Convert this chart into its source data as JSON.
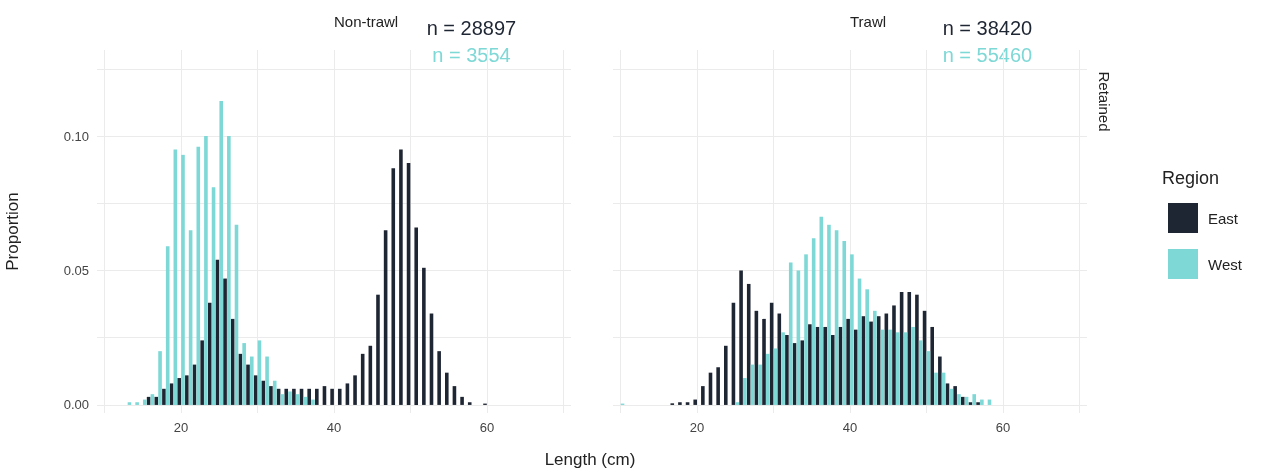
{
  "chart_data": [
    {
      "type": "bar",
      "title": "Non-trawl",
      "ylabel": "Proportion",
      "xlabel": "Length (cm)",
      "xlim": [
        9,
        71
      ],
      "xticks": [
        {
          "value": 10,
          "label": null
        },
        20,
        {
          "value": 30,
          "label": null
        },
        40,
        {
          "value": 50,
          "label": null
        },
        60,
        {
          "value": 70,
          "label": null
        }
      ],
      "ylim": [
        -0.003,
        0.132
      ],
      "yticks": [
        {
          "value": 0,
          "label": "0.00"
        },
        {
          "value": 0.025,
          "label": null
        },
        {
          "value": 0.05,
          "label": "0.05"
        },
        {
          "value": 0.075,
          "label": null
        },
        {
          "value": 0.1,
          "label": "0.10"
        },
        {
          "value": 0.125,
          "label": null
        }
      ],
      "grid": true,
      "legend": false,
      "annotations": [
        "n = 28897",
        "n = 3554"
      ],
      "series": [
        {
          "color": "#1f2633",
          "x": [
            16,
            17,
            18,
            19,
            20,
            21,
            22,
            23,
            24,
            25,
            26,
            27,
            28,
            29,
            30,
            31,
            32,
            33,
            34,
            35,
            36,
            37,
            38,
            39,
            40,
            41,
            42,
            43,
            44,
            45,
            46,
            47,
            48,
            49,
            50,
            51,
            52,
            53,
            54,
            55,
            56,
            57,
            58,
            60
          ],
          "values": [
            0.003,
            0.003,
            0.006,
            0.008,
            0.01,
            0.011,
            0.015,
            0.024,
            0.038,
            0.054,
            0.047,
            0.032,
            0.019,
            0.015,
            0.011,
            0.009,
            0.007,
            0.006,
            0.006,
            0.006,
            0.006,
            0.006,
            0.006,
            0.007,
            0.006,
            0.006,
            0.008,
            0.011,
            0.019,
            0.022,
            0.041,
            0.065,
            0.088,
            0.095,
            0.09,
            0.066,
            0.051,
            0.034,
            0.02,
            0.012,
            0.007,
            0.003,
            0.001,
            0.0005
          ]
        },
        {
          "color": "#7dd8d6",
          "x": [
            13,
            14,
            15,
            16,
            17,
            18,
            19,
            20,
            21,
            22,
            23,
            24,
            25,
            26,
            27,
            28,
            29,
            30,
            31,
            32,
            33,
            34,
            35,
            36,
            37
          ],
          "values": [
            0.001,
            0.001,
            0.002,
            0.004,
            0.02,
            0.059,
            0.095,
            0.093,
            0.065,
            0.096,
            0.1,
            0.081,
            0.113,
            0.1,
            0.067,
            0.023,
            0.018,
            0.024,
            0.018,
            0.009,
            0.004,
            0.005,
            0.004,
            0.003,
            0.002
          ]
        }
      ]
    },
    {
      "type": "bar",
      "title": "Trawl",
      "legend_title": "Region",
      "xlim": [
        9,
        71
      ],
      "xticks": [
        {
          "value": 10,
          "label": null
        },
        20,
        {
          "value": 30,
          "label": null
        },
        40,
        {
          "value": 50,
          "label": null
        },
        60,
        {
          "value": 70,
          "label": null
        }
      ],
      "ylim": [
        -0.003,
        0.132
      ],
      "yticks": [
        {
          "value": 0,
          "label": null
        },
        {
          "value": 0.025,
          "label": null
        },
        {
          "value": 0.05,
          "label": null
        },
        {
          "value": 0.075,
          "label": null
        },
        {
          "value": 0.1,
          "label": null
        },
        {
          "value": 0.125,
          "label": null
        }
      ],
      "grid": true,
      "legend": "right",
      "tick_labels": "x",
      "annotations": [
        "n = 38420",
        "n = 55460",
        "Retained"
      ],
      "series": [
        {
          "name": "East",
          "color": "#1f2633",
          "x": [
            17,
            18,
            19,
            20,
            21,
            22,
            23,
            24,
            25,
            26,
            27,
            28,
            29,
            30,
            31,
            32,
            33,
            34,
            35,
            36,
            37,
            38,
            39,
            40,
            41,
            42,
            43,
            44,
            45,
            46,
            47,
            48,
            49,
            50,
            51,
            52,
            53,
            54,
            55,
            56,
            57
          ],
          "values": [
            0.0006,
            0.001,
            0.001,
            0.002,
            0.007,
            0.012,
            0.014,
            0.022,
            0.038,
            0.05,
            0.045,
            0.035,
            0.032,
            0.038,
            0.034,
            0.026,
            0.023,
            0.024,
            0.03,
            0.029,
            0.029,
            0.026,
            0.029,
            0.032,
            0.028,
            0.033,
            0.031,
            0.033,
            0.034,
            0.037,
            0.042,
            0.042,
            0.041,
            0.035,
            0.029,
            0.018,
            0.008,
            0.007,
            0.003,
            0.001,
            0.001
          ]
        },
        {
          "name": "West",
          "color": "#7dd8d6",
          "x": [
            10,
            25,
            26,
            27,
            28,
            29,
            30,
            31,
            32,
            33,
            34,
            35,
            36,
            37,
            38,
            39,
            40,
            41,
            42,
            43,
            44,
            45,
            46,
            47,
            48,
            49,
            50,
            51,
            52,
            53,
            54,
            55,
            56,
            57,
            58
          ],
          "values": [
            0.0005,
            0.001,
            0.01,
            0.015,
            0.015,
            0.019,
            0.021,
            0.027,
            0.053,
            0.05,
            0.056,
            0.062,
            0.07,
            0.067,
            0.065,
            0.061,
            0.056,
            0.047,
            0.043,
            0.035,
            0.028,
            0.028,
            0.027,
            0.027,
            0.029,
            0.024,
            0.02,
            0.012,
            0.012,
            0.006,
            0.004,
            0.003,
            0.004,
            0.002,
            0.002
          ]
        }
      ]
    }
  ]
}
